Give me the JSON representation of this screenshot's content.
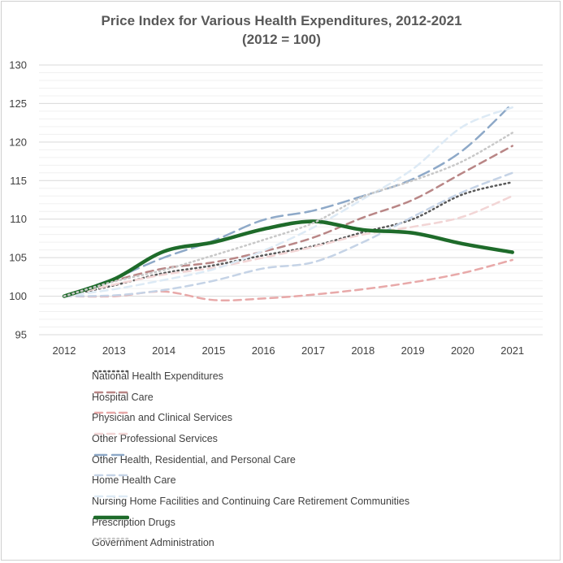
{
  "chart_data": {
    "type": "line",
    "title": "Price Index for Various Health Expenditures, 2012-2021",
    "subtitle": "(2012 = 100)",
    "xlabel": "",
    "ylabel": "",
    "x": [
      "2012",
      "2013",
      "2014",
      "2015",
      "2016",
      "2017",
      "2018",
      "2019",
      "2020",
      "2021"
    ],
    "ylim": [
      95,
      130
    ],
    "yticks": [
      95,
      100,
      105,
      110,
      115,
      120,
      125,
      130
    ],
    "grid": true,
    "legend_position": "bottom",
    "series": [
      {
        "name": "National Health Expenditures",
        "values": [
          100,
          101.4,
          103.0,
          104.0,
          105.3,
          106.5,
          108.3,
          110.0,
          113.2,
          114.8
        ],
        "color": "#595959",
        "dash": "dotted",
        "width": 2.5
      },
      {
        "name": "Hospital Care",
        "values": [
          100,
          102.0,
          103.6,
          104.4,
          105.8,
          107.6,
          110.2,
          112.5,
          116.0,
          119.5
        ],
        "color": "#b98686",
        "dash": "dashed",
        "width": 2.5
      },
      {
        "name": "Physician and Clinical Services",
        "values": [
          100,
          100.0,
          100.6,
          99.5,
          99.7,
          100.2,
          100.9,
          101.8,
          103.0,
          104.7
        ],
        "color": "#e8a9a9",
        "dash": "dashed",
        "width": 2.5
      },
      {
        "name": "Other Professional Services",
        "values": [
          100,
          101.5,
          102.8,
          103.7,
          105.0,
          106.4,
          108.0,
          109.0,
          110.3,
          113.0
        ],
        "color": "#f2d5d5",
        "dash": "dashed",
        "width": 2.5
      },
      {
        "name": "Other Health, Residential, and Personal Care",
        "values": [
          100,
          102.3,
          105.0,
          107.2,
          109.9,
          111.1,
          113.0,
          115.2,
          118.9,
          125.0
        ],
        "color": "#8ea9c8",
        "dash": "longdash",
        "width": 2.5
      },
      {
        "name": "Home Health Care",
        "values": [
          100,
          100.1,
          100.8,
          102.0,
          103.6,
          104.4,
          107.0,
          110.3,
          113.5,
          116.0
        ],
        "color": "#c5d3e6",
        "dash": "dashed",
        "width": 2.5
      },
      {
        "name": "Nursing Home Facilities and Continuing Care Retirement Communities",
        "values": [
          100,
          100.9,
          102.1,
          103.5,
          105.9,
          108.9,
          112.6,
          116.5,
          122.0,
          124.5
        ],
        "color": "#ddeaf5",
        "dash": "dashed",
        "width": 2.5
      },
      {
        "name": "Prescription Drugs",
        "values": [
          100,
          102.2,
          105.8,
          107.0,
          108.7,
          109.7,
          108.6,
          108.2,
          106.8,
          105.7
        ],
        "color": "#1e6b2a",
        "dash": "solid",
        "width": 4.5
      },
      {
        "name": "Government Administration",
        "values": [
          100,
          101.9,
          103.4,
          105.3,
          107.3,
          109.5,
          112.9,
          115.0,
          117.5,
          121.2
        ],
        "color": "#c8c8c8",
        "dash": "dotted",
        "width": 2.5
      }
    ]
  }
}
